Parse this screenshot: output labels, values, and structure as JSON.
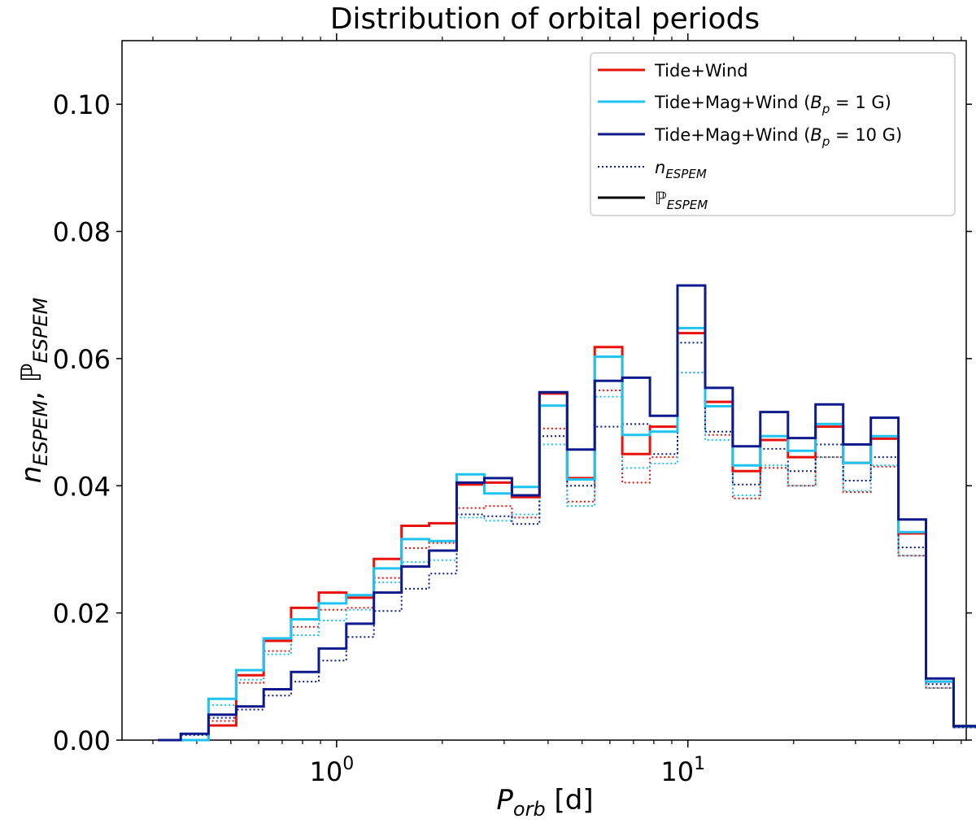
{
  "chart_data": {
    "type": "line",
    "drawstyle": "steps-mid histogram",
    "title": "Distribution of orbital periods",
    "xlabel": {
      "main": "P",
      "sub": "orb",
      "unit": " [d]"
    },
    "ylabel": {
      "n": "n",
      "n_sub": "ESPEM",
      "sep": ", ",
      "p": "ℙ",
      "p_sub": "ESPEM"
    },
    "xscale": "log",
    "xlim": [
      0.245,
      62
    ],
    "ylim": [
      0,
      0.11
    ],
    "x_ticks": [
      {
        "value": 1,
        "base": "10",
        "exp": "0"
      },
      {
        "value": 10,
        "base": "10",
        "exp": "1"
      }
    ],
    "y_ticks": [
      {
        "value": 0.0,
        "label": "0.00"
      },
      {
        "value": 0.02,
        "label": "0.02"
      },
      {
        "value": 0.04,
        "label": "0.04"
      },
      {
        "value": 0.06,
        "label": "0.06"
      },
      {
        "value": 0.08,
        "label": "0.08"
      },
      {
        "value": 0.1,
        "label": "0.10"
      }
    ],
    "bin_edges": [
      0.31,
      0.36,
      0.432,
      0.518,
      0.62,
      0.742,
      0.89,
      1.066,
      1.277,
      1.531,
      1.834,
      2.197,
      2.634,
      3.155,
      3.781,
      4.531,
      5.431,
      6.506,
      7.799,
      9.342,
      11.2,
      13.42,
      16.08,
      19.27,
      23.09,
      27.68,
      33.17,
      39.74,
      47.63,
      57.08
    ],
    "series": [
      {
        "name": "Tide+Wind",
        "color": "#e8120c",
        "P": [
          0.0,
          0.0,
          0.0023,
          0.0102,
          0.0156,
          0.0208,
          0.0232,
          0.0224,
          0.0285,
          0.0337,
          0.0341,
          0.0402,
          0.0405,
          0.0382,
          0.0545,
          0.0412,
          0.0618,
          0.045,
          0.0493,
          0.064,
          0.0532,
          0.0423,
          0.0472,
          0.0445,
          0.0493,
          0.0436,
          0.0474,
          0.0325,
          0.0092,
          0.0022
        ],
        "n": [
          0.0,
          0.0,
          0.003,
          0.009,
          0.014,
          0.0178,
          0.0205,
          0.0208,
          0.0255,
          0.0302,
          0.031,
          0.0365,
          0.0368,
          0.035,
          0.049,
          0.0375,
          0.055,
          0.0405,
          0.0445,
          0.0578,
          0.048,
          0.038,
          0.0428,
          0.04,
          0.0445,
          0.039,
          0.043,
          0.029,
          0.0082,
          0.002
        ]
      },
      {
        "name": "Tide+Mag+Wind",
        "bp": "1 G",
        "color": "#1ec3f0",
        "P": [
          0.0,
          0.0,
          0.0065,
          0.011,
          0.016,
          0.019,
          0.0215,
          0.0228,
          0.027,
          0.0316,
          0.0313,
          0.0418,
          0.0388,
          0.0398,
          0.0526,
          0.041,
          0.0603,
          0.048,
          0.0485,
          0.0648,
          0.0525,
          0.0432,
          0.0478,
          0.0455,
          0.0497,
          0.0436,
          0.0478,
          0.0327,
          0.0092,
          0.0022
        ],
        "n": [
          0.0,
          0.0,
          0.0055,
          0.0095,
          0.0135,
          0.0165,
          0.0188,
          0.0205,
          0.0248,
          0.028,
          0.0283,
          0.035,
          0.0345,
          0.0355,
          0.0465,
          0.0368,
          0.054,
          0.0428,
          0.0435,
          0.0578,
          0.0472,
          0.0385,
          0.0432,
          0.04,
          0.0445,
          0.0392,
          0.0432,
          0.029,
          0.0082,
          0.002
        ]
      },
      {
        "name": "Tide+Mag+Wind",
        "bp": "10 G",
        "color": "#0d1a8c",
        "P": [
          0.0,
          0.001,
          0.004,
          0.0053,
          0.008,
          0.0107,
          0.0144,
          0.0183,
          0.0232,
          0.0273,
          0.0298,
          0.0405,
          0.0412,
          0.0385,
          0.0547,
          0.0457,
          0.0565,
          0.057,
          0.051,
          0.0715,
          0.0554,
          0.0462,
          0.0516,
          0.0475,
          0.0528,
          0.0465,
          0.0507,
          0.0347,
          0.0097,
          0.0022
        ],
        "n": [
          0.0,
          0.0008,
          0.0035,
          0.0048,
          0.007,
          0.0092,
          0.0125,
          0.0162,
          0.0203,
          0.0238,
          0.0262,
          0.0355,
          0.0352,
          0.034,
          0.0478,
          0.04,
          0.0493,
          0.0497,
          0.045,
          0.0625,
          0.0485,
          0.0402,
          0.0458,
          0.0423,
          0.0465,
          0.0408,
          0.0445,
          0.0303,
          0.0088,
          0.002
        ]
      }
    ],
    "legend": {
      "placement": "top-right",
      "entries": [
        {
          "label": "Tide+Wind",
          "color": "#e8120c",
          "style": "solid"
        },
        {
          "prefix": "Tide+Mag+Wind (",
          "bvar": "B",
          "bsub": "p",
          "eq": " = 1 G)",
          "color": "#1ec3f0",
          "style": "solid"
        },
        {
          "prefix": "Tide+Mag+Wind (",
          "bvar": "B",
          "bsub": "p",
          "eq": " = 10 G)",
          "color": "#0d1a8c",
          "style": "solid"
        },
        {
          "var": "n",
          "sub": "ESPEM",
          "color": "#0d1a8c",
          "style": "dotted"
        },
        {
          "var": "ℙ",
          "sub": "ESPEM",
          "color": "#000000",
          "style": "solid"
        }
      ]
    }
  }
}
